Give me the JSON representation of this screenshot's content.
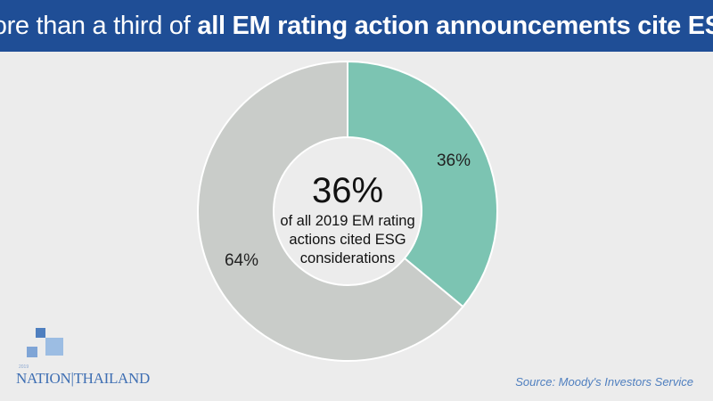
{
  "header": {
    "title_lead": "More than a third of",
    "title_bold": "all EM rating action announcements cite ESG"
  },
  "chart_data": {
    "type": "pie",
    "donut": true,
    "slices": [
      {
        "label": "36%",
        "value": 36,
        "color": "#7cc4b2"
      },
      {
        "label": "64%",
        "value": 64,
        "color": "#c9ccc9"
      }
    ],
    "center": {
      "value": "36%",
      "lines": [
        "of all 2019 EM rating",
        "actions cited ESG",
        "considerations"
      ]
    }
  },
  "source": "Source: Moody's Investors Service",
  "logo": {
    "tag": "2019",
    "wordmark": "NATION|THAILAND"
  },
  "colors": {
    "header_bg": "#1f4e96",
    "background": "#ececec",
    "accent_slice": "#7cc4b2",
    "rest_slice": "#c9ccc9"
  }
}
